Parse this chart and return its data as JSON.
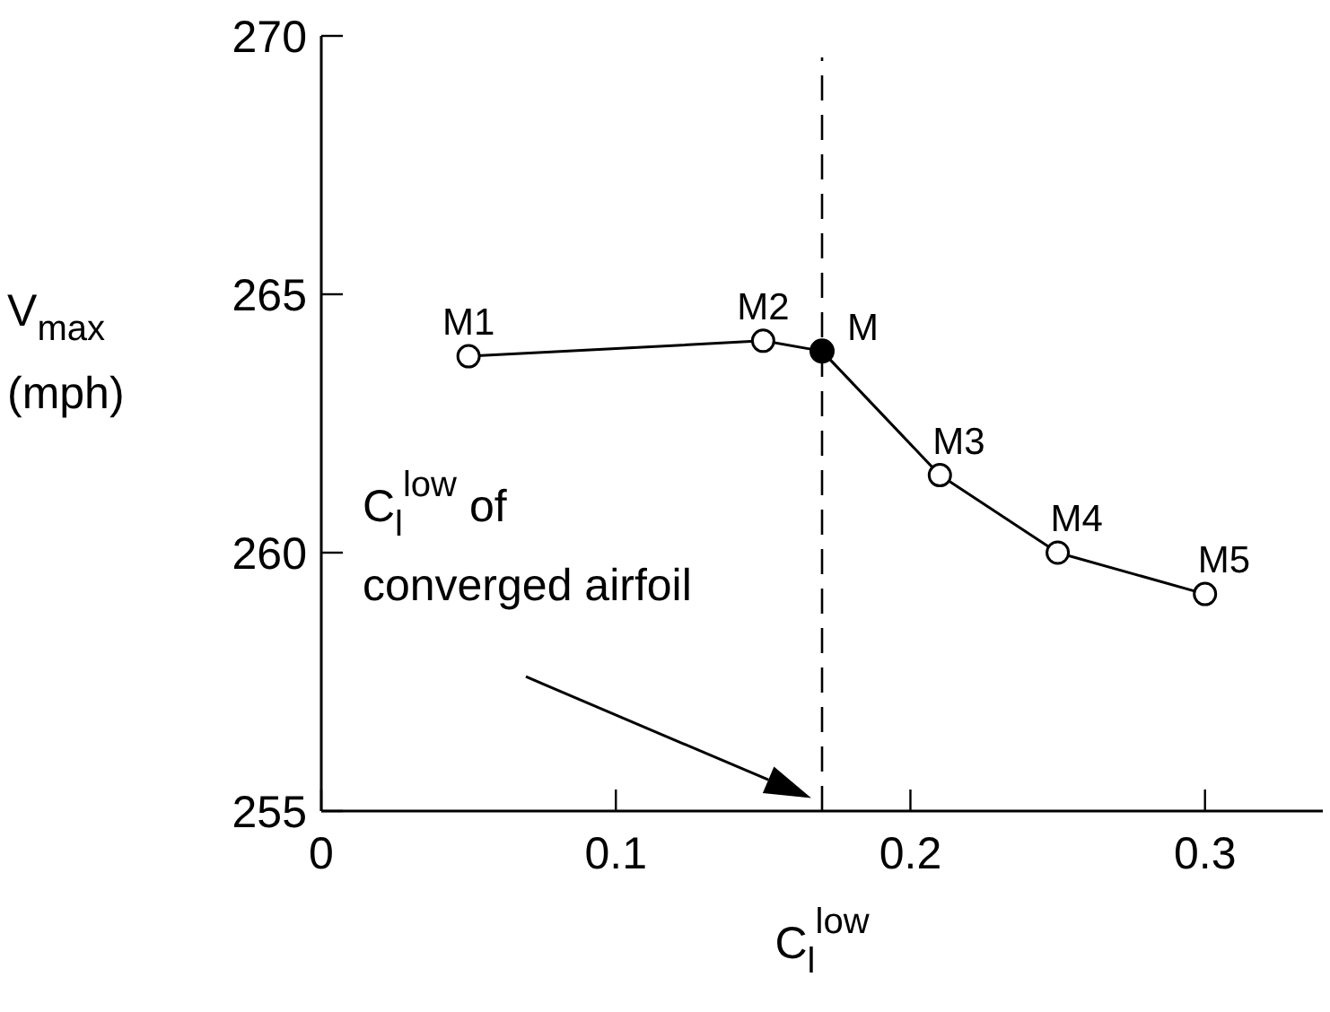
{
  "chart_data": {
    "type": "line",
    "xlabel": "C$_{l}$$^{low}$",
    "ylabel": "V$_{max}$\n(mph)",
    "xlim": [
      0,
      0.34
    ],
    "xticks": [
      0,
      0.1,
      0.2,
      0.3
    ],
    "ylim": [
      255,
      270
    ],
    "yticks": [
      255,
      260,
      265,
      270
    ],
    "grid": false,
    "series": [
      {
        "color": "#000000",
        "x": [
          0.05,
          0.15,
          0.17,
          0.21,
          0.25,
          0.3
        ],
        "values": [
          263.8,
          264.1,
          263.9,
          261.5,
          260.0,
          259.2
        ],
        "marker": "circle",
        "line_style": "solid"
      },
      {
        "type": "scatter",
        "color": "#000000",
        "x": [
          0.17
        ],
        "values": [
          263.9
        ],
        "marker": "circle"
      }
    ],
    "ref_lines": [
      {
        "axis": "x",
        "value": 0.17,
        "line_style": "dashed",
        "color": "#000000"
      }
    ],
    "annotations": [
      {
        "text": "M1",
        "x": 0.05,
        "y": 263.8
      },
      {
        "text": "M2",
        "x": 0.15,
        "y": 264.1
      },
      {
        "text": "M",
        "x": 0.17,
        "y": 263.9
      },
      {
        "text": "M3",
        "x": 0.21,
        "y": 261.5
      },
      {
        "text": "M4",
        "x": 0.25,
        "y": 260.0
      },
      {
        "text": "M5",
        "x": 0.3,
        "y": 259.2
      },
      "C$_{l}$$^{low}$ of\nconverged airfoil"
    ]
  }
}
